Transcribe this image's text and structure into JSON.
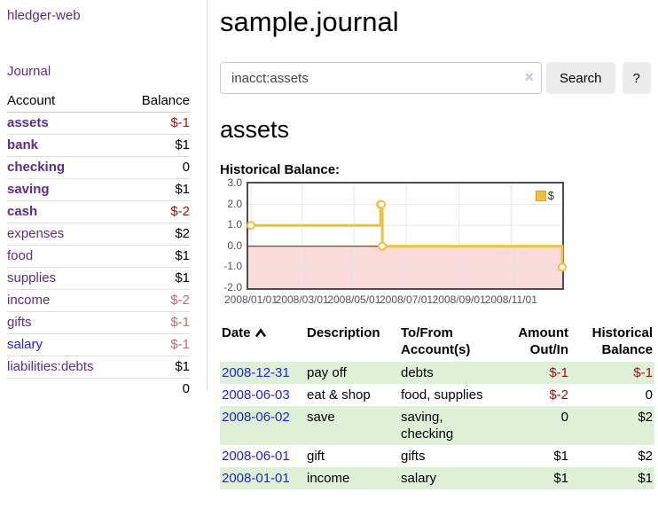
{
  "colors": {
    "purple": "#5c2d91",
    "blue": "#2222dd",
    "neg_strong": "#a31111",
    "neg_muted": "#c46a6a",
    "stripe_green": "#dff0d8",
    "gold": "#edc240",
    "pink": "#fbdada",
    "zero_red": "#8b0000",
    "button_bg": "#ececec"
  },
  "app": {
    "brand": "hledger-web",
    "nav_journal": "Journal"
  },
  "sidebar": {
    "headers": {
      "account": "Account",
      "balance": "Balance"
    },
    "accounts": [
      {
        "name": "assets",
        "balance": "$-1"
      },
      {
        "name": "bank",
        "balance": "$1"
      },
      {
        "name": "checking",
        "balance": "0"
      },
      {
        "name": "saving",
        "balance": "$1"
      },
      {
        "name": "cash",
        "balance": "$-2"
      },
      {
        "name": "expenses",
        "balance": "$2"
      },
      {
        "name": "food",
        "balance": "$1"
      },
      {
        "name": "supplies",
        "balance": "$1"
      },
      {
        "name": "income",
        "balance": "$-2"
      },
      {
        "name": "gifts",
        "balance": "$-1"
      },
      {
        "name": "salary",
        "balance": "$-1"
      },
      {
        "name": "liabilities:debts",
        "balance": "$1"
      }
    ],
    "total": "0"
  },
  "header": {
    "title": "sample.journal"
  },
  "search": {
    "value": "inacct:assets",
    "clear_icon": "×",
    "button_label": "Search",
    "help_label": "?"
  },
  "account_page": {
    "heading": "assets",
    "chart_label": "Historical Balance:"
  },
  "chart_data": {
    "type": "line",
    "title": "Historical Balance",
    "step": true,
    "series": [
      {
        "name": "$",
        "color": "#edc240",
        "points": [
          [
            "2008-01-01",
            1
          ],
          [
            "2008-06-01",
            2
          ],
          [
            "2008-06-02",
            2
          ],
          [
            "2008-06-03",
            0
          ],
          [
            "2008-12-31",
            -1
          ]
        ]
      }
    ],
    "ylim": [
      -2,
      3
    ],
    "yticks": [
      "3.0",
      "2.0",
      "1.0",
      "0.0",
      "-1.0",
      "-2.0"
    ],
    "xticks": [
      "2008/01/01",
      "2008/03/01",
      "2008/05/01",
      "2008/07/01",
      "2008/09/01",
      "2008/11/01"
    ],
    "legend_position": "top-right",
    "grid": true,
    "negative_region_color": "#fbdada",
    "zero_line_color": "#8b0000",
    "gridline_color": "#e8e8e8"
  },
  "transactions": {
    "headers": {
      "date": "Date",
      "description": "Description",
      "accounts": "To/From Account(s)",
      "amount": "Amount Out/In",
      "balance": "Historical Balance"
    },
    "rows": [
      {
        "date": "2008-12-31",
        "description": "pay off",
        "accounts": "debts",
        "amount": "$-1",
        "balance": "$-1"
      },
      {
        "date": "2008-06-03",
        "description": "eat & shop",
        "accounts": "food, supplies",
        "amount": "$-2",
        "balance": "0"
      },
      {
        "date": "2008-06-02",
        "description": "save",
        "accounts": "saving,\nchecking",
        "amount": "0",
        "balance": "$2"
      },
      {
        "date": "2008-06-01",
        "description": "gift",
        "accounts": "gifts",
        "amount": "$1",
        "balance": "$2"
      },
      {
        "date": "2008-01-01",
        "description": "income",
        "accounts": "salary",
        "amount": "$1",
        "balance": "$1"
      }
    ]
  }
}
